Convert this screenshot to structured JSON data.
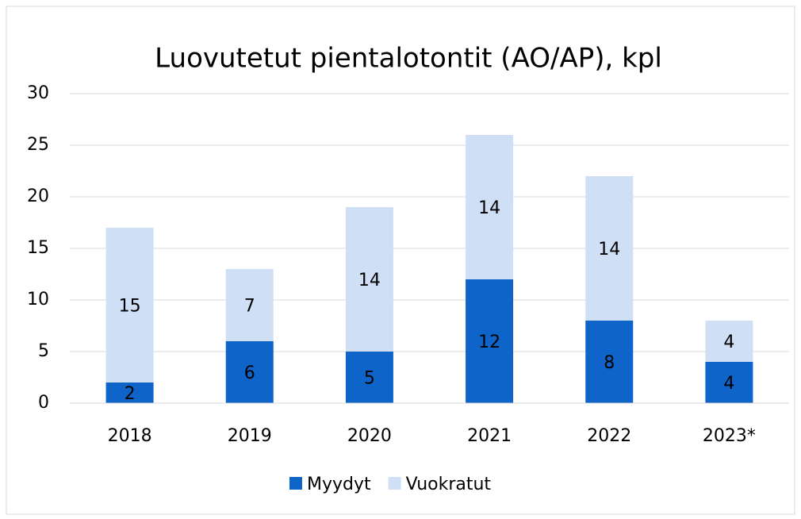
{
  "chart_data": {
    "type": "bar",
    "stacked": true,
    "title": "Luovutetut pientalotontit (AO/AP), kpl",
    "categories": [
      "2018",
      "2019",
      "2020",
      "2021",
      "2022",
      "2023*"
    ],
    "series": [
      {
        "name": "Myydyt",
        "color": "#0e64c8",
        "values": [
          2,
          6,
          5,
          12,
          8,
          4
        ]
      },
      {
        "name": "Vuokratut",
        "color": "#cfe0f6",
        "values": [
          15,
          7,
          14,
          14,
          14,
          4
        ]
      }
    ],
    "ylim": [
      0,
      30
    ],
    "yticks": [
      0,
      5,
      10,
      15,
      20,
      25,
      30
    ],
    "grid": true,
    "legend": "bottom"
  }
}
